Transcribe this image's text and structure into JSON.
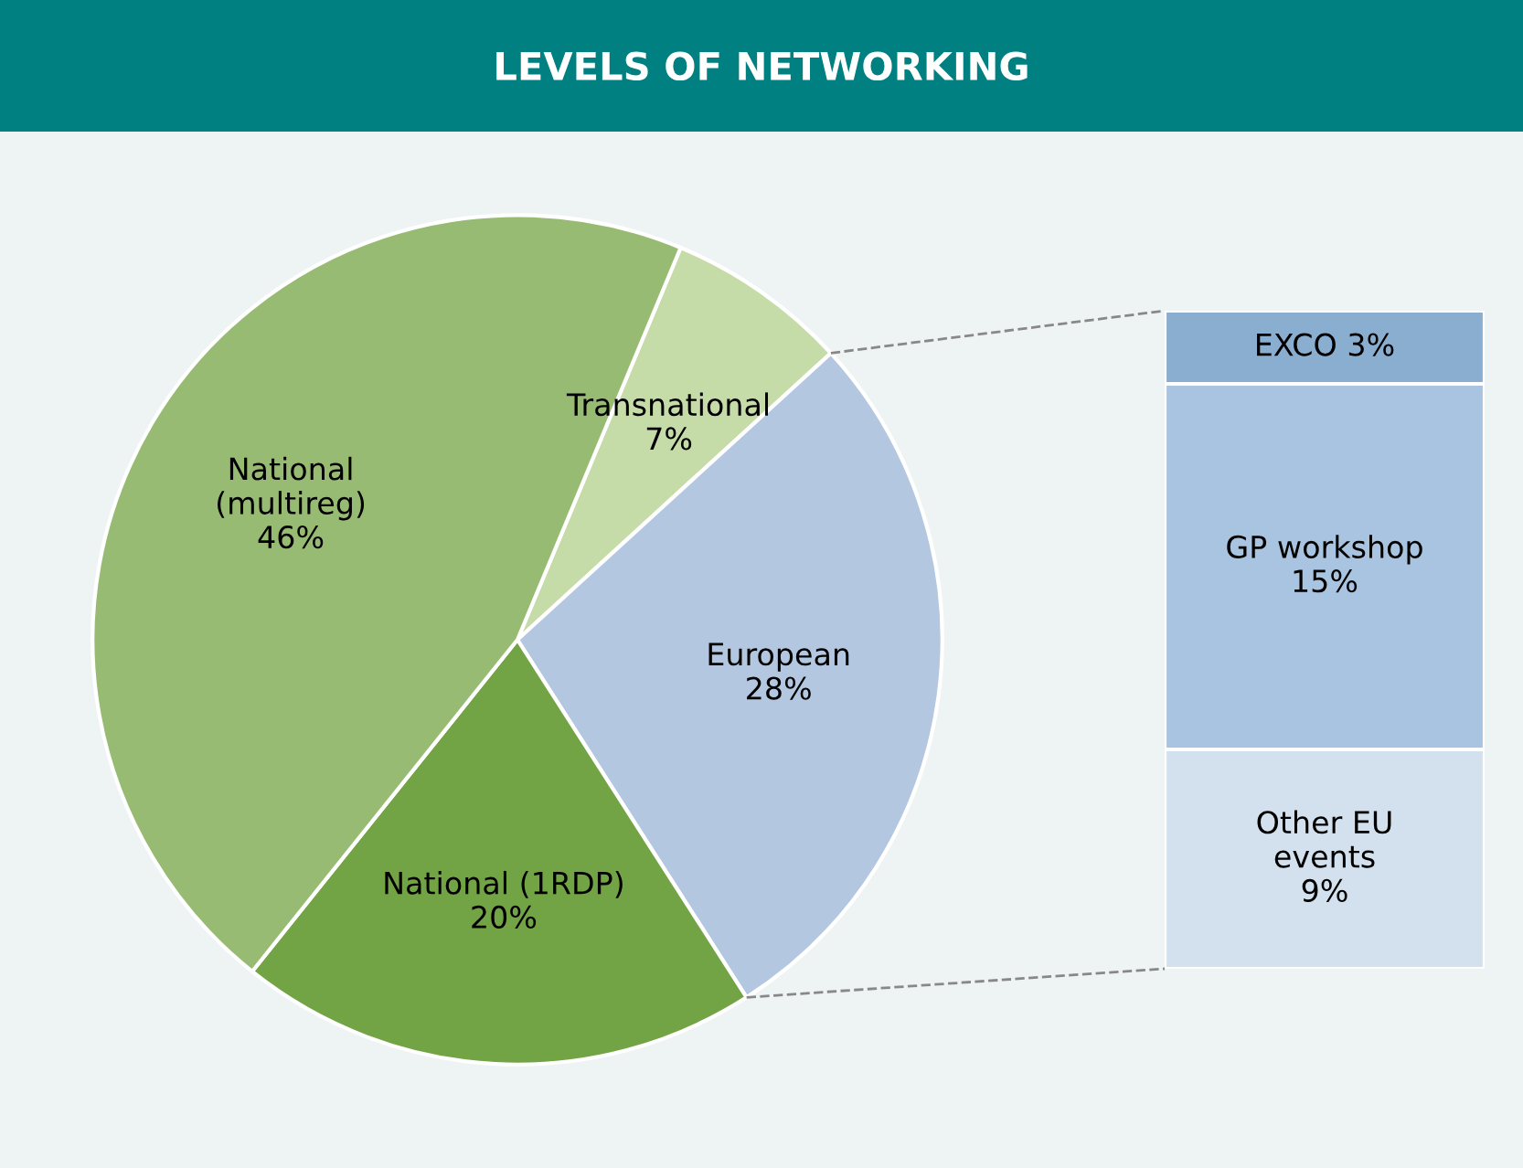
{
  "chart_data": [
    {
      "type": "pie",
      "title": "LEVELS OF NETWORKING",
      "categories": [
        "Transnational",
        "European",
        "National (1RDP)",
        "National\n(multireg)"
      ],
      "values": [
        7,
        28,
        20,
        46
      ],
      "value_labels": [
        "7%",
        "28%",
        "20%",
        "46%"
      ],
      "colors": [
        "#c5dba8",
        "#b3c8e0",
        "#72a445",
        "#97bb72"
      ]
    },
    {
      "type": "bar",
      "stacked": true,
      "categories": [
        null
      ],
      "series": [
        {
          "name": "Other EU\nevents",
          "color": "#d3e1ef",
          "values": [
            9
          ],
          "value_labels": [
            "9%"
          ]
        },
        {
          "name": "GP workshop",
          "color": "#a9c4e0",
          "values": [
            15
          ],
          "value_labels": [
            "15%"
          ]
        },
        {
          "name": "EXCO",
          "color": "#8aaed0",
          "values": [
            3
          ],
          "value_labels": [
            "3%"
          ]
        }
      ]
    }
  ]
}
